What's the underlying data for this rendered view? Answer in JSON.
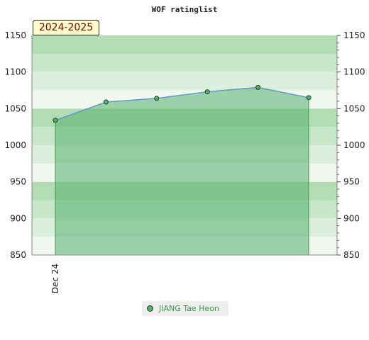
{
  "chart_data": {
    "type": "area",
    "title": "WOF ratinglist",
    "season_label": "2024-2025",
    "ylim": [
      850,
      1150
    ],
    "y_ticks": [
      850,
      900,
      950,
      1000,
      1050,
      1100,
      1150
    ],
    "x_tick_labels": [
      "Dec 24"
    ],
    "series": [
      {
        "name": "JIANG Tae Heon",
        "values": [
          1034,
          1059,
          1064,
          1073,
          1079,
          1065
        ]
      }
    ],
    "legend_position": "bottom-center",
    "colors": {
      "fill": "#55b070",
      "line": "#6699cc",
      "marker": "#55b070"
    }
  }
}
